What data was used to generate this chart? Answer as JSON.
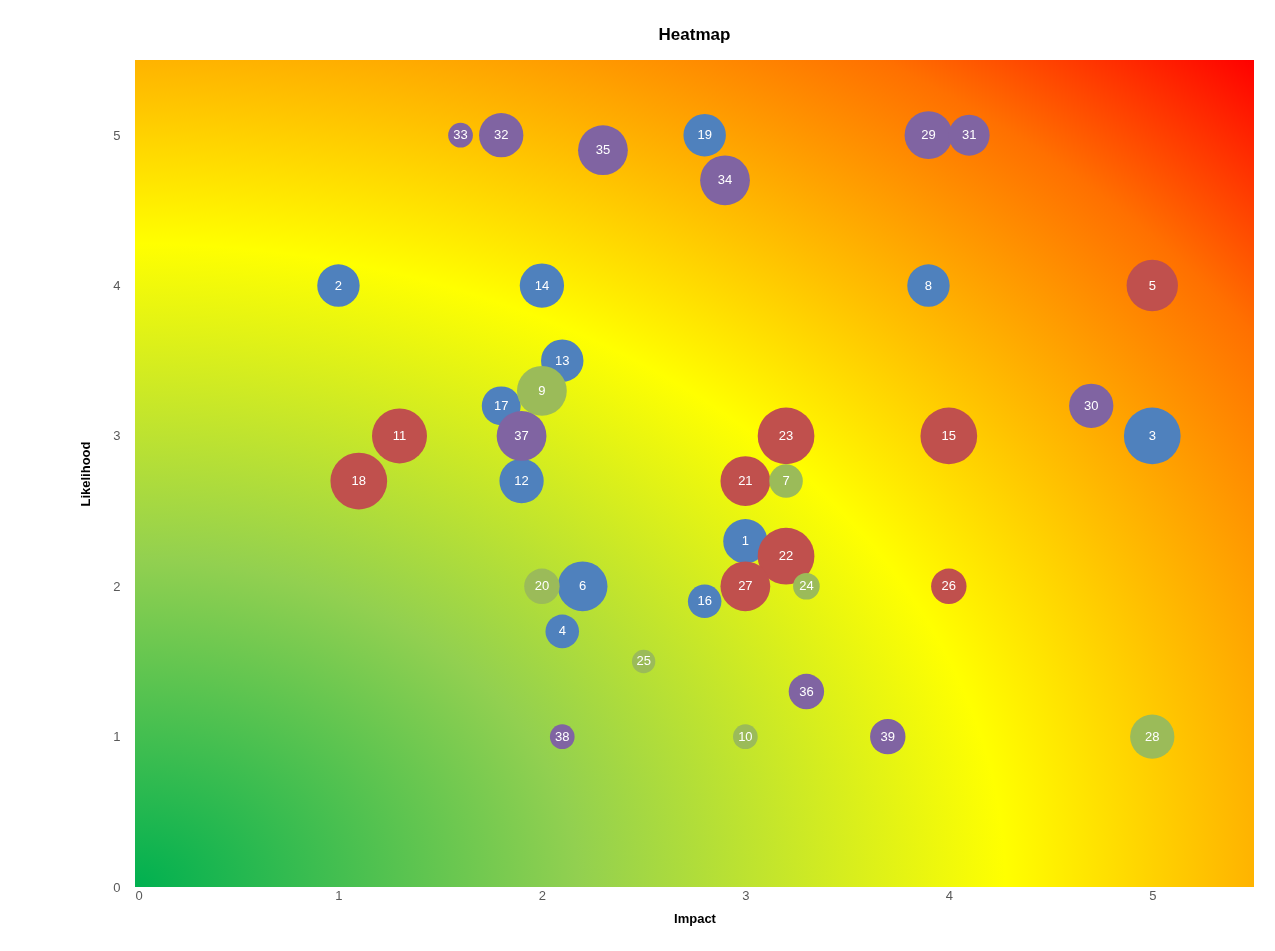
{
  "chart_data": {
    "type": "bubble",
    "title": "Heatmap",
    "xlabel": "Impact",
    "ylabel": "Likelihood",
    "xlim": [
      0,
      5.5
    ],
    "ylim": [
      0,
      5.5
    ],
    "xticks": [
      0,
      1,
      2,
      3,
      4,
      5
    ],
    "yticks": [
      0,
      1,
      2,
      3,
      4,
      5
    ],
    "series": [
      {
        "color": "#4f81bd",
        "x": [
          3,
          1,
          5,
          2.1,
          2.2,
          3.9,
          1.9,
          2.1,
          2,
          2.8,
          1.8,
          2.8
        ],
        "values": [
          2.3,
          4,
          3,
          1.7,
          2,
          4,
          2.7,
          3.5,
          4,
          1.9,
          3.2,
          5
        ],
        "sizes": [
          0.61,
          0.56,
          1,
          0.35,
          0.77,
          0.56,
          0.61,
          0.56,
          0.61,
          0.35,
          0.47,
          0.56
        ]
      },
      {
        "color": "#c0504d",
        "x": [
          5,
          1.3,
          4,
          1.1,
          3,
          3.2,
          3.2,
          4,
          3
        ],
        "values": [
          4,
          3,
          3,
          2.7,
          2.7,
          2.2,
          3,
          2,
          2
        ],
        "sizes": [
          0.82,
          0.94,
          1,
          1,
          0.77,
          1,
          1,
          0.39,
          0.77
        ]
      },
      {
        "color": "#9bbb59",
        "x": [
          3.2,
          2,
          3,
          2,
          3.3,
          2.5,
          5
        ],
        "values": [
          2.7,
          3.3,
          1,
          2,
          2,
          1.5,
          1
        ],
        "sizes": [
          0.35,
          0.77,
          0.19,
          0.39,
          0.22,
          0.17,
          0.61
        ]
      },
      {
        "color": "#8064a2",
        "x": [
          3.9,
          4.7,
          4.1,
          1.8,
          1.6,
          2.9,
          2.3,
          3.3,
          1.9,
          2.1,
          3.7
        ],
        "values": [
          5,
          3.2,
          5,
          5,
          5,
          4.7,
          4.9,
          1.3,
          3,
          1,
          1
        ],
        "sizes": [
          0.71,
          0.61,
          0.52,
          0.61,
          0.19,
          0.77,
          0.77,
          0.39,
          0.77,
          0.19,
          0.39
        ]
      }
    ],
    "annotations": [
      {
        "text": "1",
        "x": 3,
        "y": 2.3
      },
      {
        "text": "2",
        "x": 1,
        "y": 4
      },
      {
        "text": "3",
        "x": 5,
        "y": 3
      },
      {
        "text": "4",
        "x": 2.1,
        "y": 1.7
      },
      {
        "text": "6",
        "x": 2.2,
        "y": 2
      },
      {
        "text": "8",
        "x": 3.9,
        "y": 4
      },
      {
        "text": "12",
        "x": 1.9,
        "y": 2.7
      },
      {
        "text": "13",
        "x": 2.1,
        "y": 3.5
      },
      {
        "text": "14",
        "x": 2,
        "y": 4
      },
      {
        "text": "16",
        "x": 2.8,
        "y": 1.9
      },
      {
        "text": "17",
        "x": 1.8,
        "y": 3.2
      },
      {
        "text": "19",
        "x": 2.8,
        "y": 5
      },
      {
        "text": "5",
        "x": 5,
        "y": 4
      },
      {
        "text": "11",
        "x": 1.3,
        "y": 3
      },
      {
        "text": "15",
        "x": 4,
        "y": 3
      },
      {
        "text": "18",
        "x": 1.1,
        "y": 2.7
      },
      {
        "text": "21",
        "x": 3,
        "y": 2.7
      },
      {
        "text": "22",
        "x": 3.2,
        "y": 2.2
      },
      {
        "text": "23",
        "x": 3.2,
        "y": 3
      },
      {
        "text": "26",
        "x": 4,
        "y": 2
      },
      {
        "text": "27",
        "x": 3,
        "y": 2
      },
      {
        "text": "7",
        "x": 3.2,
        "y": 2.7
      },
      {
        "text": "9",
        "x": 2,
        "y": 3.3
      },
      {
        "text": "10",
        "x": 3,
        "y": 1
      },
      {
        "text": "20",
        "x": 2,
        "y": 2
      },
      {
        "text": "24",
        "x": 3.3,
        "y": 2
      },
      {
        "text": "25",
        "x": 2.5,
        "y": 1.5
      },
      {
        "text": "28",
        "x": 5,
        "y": 1
      },
      {
        "text": "29",
        "x": 3.9,
        "y": 5
      },
      {
        "text": "30",
        "x": 4.7,
        "y": 3.2
      },
      {
        "text": "31",
        "x": 4.1,
        "y": 5
      },
      {
        "text": "32",
        "x": 1.8,
        "y": 5
      },
      {
        "text": "33",
        "x": 1.6,
        "y": 5
      },
      {
        "text": "34",
        "x": 2.9,
        "y": 4.7
      },
      {
        "text": "35",
        "x": 2.3,
        "y": 4.9
      },
      {
        "text": "36",
        "x": 3.3,
        "y": 1.3
      },
      {
        "text": "37",
        "x": 1.9,
        "y": 3
      },
      {
        "text": "38",
        "x": 2.1,
        "y": 1
      },
      {
        "text": "39",
        "x": 3.7,
        "y": 1
      }
    ]
  }
}
